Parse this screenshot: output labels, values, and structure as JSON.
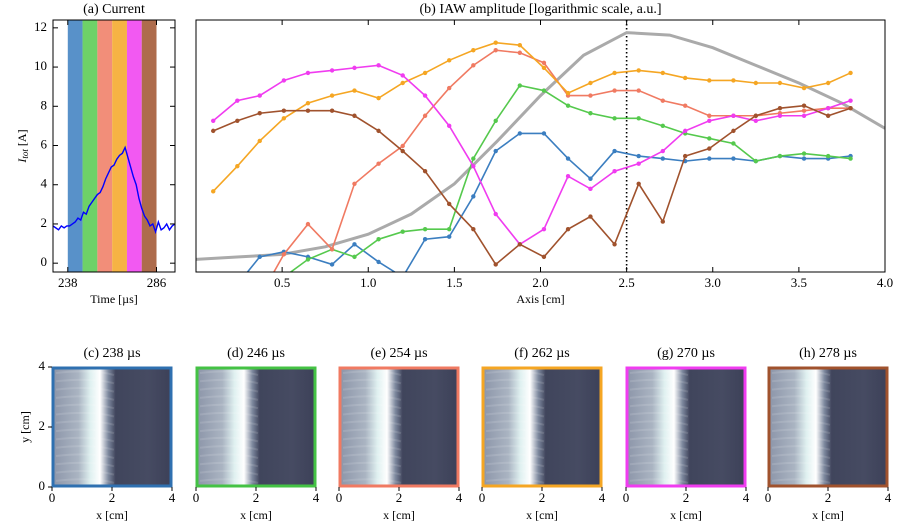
{
  "chart_data": [
    {
      "type": "line",
      "title": "(a) Current",
      "xlabel": "Time [µs]",
      "ylabel": {
        "symbol": "I",
        "subscript": "tot",
        "unit": "[A]"
      },
      "xlim": [
        230,
        296
      ],
      "xticks": [
        238,
        286
      ],
      "ylim": [
        -0.45,
        12.4
      ],
      "yticks": [
        0,
        2,
        4,
        6,
        8,
        10,
        12
      ],
      "bands": [
        {
          "start": 238,
          "end": 246,
          "color": "#3b7ec0"
        },
        {
          "start": 246,
          "end": 254,
          "color": "#55c94d"
        },
        {
          "start": 254,
          "end": 262,
          "color": "#f07a62"
        },
        {
          "start": 262,
          "end": 270,
          "color": "#f5a623"
        },
        {
          "start": 270,
          "end": 278,
          "color": "#f03cf0"
        },
        {
          "start": 278,
          "end": 286,
          "color": "#a0522d"
        }
      ],
      "series": [
        {
          "color": "#0000ff",
          "markers": false,
          "x": [
            230,
            231.5,
            233,
            234.5,
            236,
            237.5,
            239,
            240.5,
            242,
            243.5,
            245,
            246.5,
            248,
            249.5,
            251,
            252.5,
            254,
            255.5,
            257,
            258.5,
            260,
            261.5,
            263,
            264.5,
            266,
            267.5,
            269,
            270.5,
            272,
            273.5,
            275,
            276.5,
            278,
            279.5,
            281,
            282.5,
            284,
            285.5,
            287,
            288.5,
            290,
            291.5,
            293,
            294.5,
            296
          ],
          "values": [
            1.9,
            1.8,
            1.7,
            1.9,
            1.8,
            1.9,
            1.9,
            2.0,
            2.1,
            2.3,
            2.2,
            2.6,
            2.5,
            2.9,
            3.1,
            3.3,
            3.5,
            3.6,
            3.9,
            4.3,
            4.6,
            4.9,
            5.0,
            5.3,
            5.5,
            5.6,
            5.9,
            5.4,
            4.9,
            4.4,
            4.0,
            3.3,
            2.8,
            2.4,
            2.2,
            1.9,
            2.0,
            1.6,
            2.1,
            1.7,
            1.8,
            2.0,
            1.7,
            1.9,
            2.0
          ]
        }
      ]
    },
    {
      "type": "line",
      "title": "(b) IAW amplitude [logarithmic scale, a.u.]",
      "xlabel": "Axis [cm]",
      "xlim": [
        0,
        4
      ],
      "xticks": [
        0.5,
        {
          "value": 1,
          "label": "1.0"
        },
        1.5,
        {
          "value": 2,
          "label": "2.0"
        },
        2.5,
        {
          "value": 3,
          "label": "3.0"
        },
        3.5,
        {
          "value": 4,
          "label": "4.0"
        }
      ],
      "ylim": [
        0,
        100
      ],
      "vline": 2.5,
      "series": [
        {
          "color": "#aaaaaa",
          "markers": false,
          "x": [
            0,
            0.25,
            0.5,
            0.75,
            1.0,
            1.25,
            1.5,
            1.75,
            2.0,
            2.25,
            2.5,
            2.75,
            3.0,
            3.25,
            3.5,
            3.75,
            4.0
          ],
          "values": [
            5,
            6,
            7,
            10,
            15,
            23,
            35,
            52,
            70,
            86,
            95,
            94,
            89,
            82,
            75,
            67,
            57
          ]
        },
        {
          "color": "#3b7ec0",
          "markers": true,
          "x": [
            0.1,
            0.24,
            0.37,
            0.51,
            0.65,
            0.79,
            0.92,
            1.06,
            1.2,
            1.33,
            1.47,
            1.61,
            1.74,
            1.88,
            2.02,
            2.16,
            2.29,
            2.43,
            2.57,
            2.71,
            2.84,
            2.98,
            3.12,
            3.25,
            3.39,
            3.53,
            3.67,
            3.8
          ],
          "values": [
            null,
            -5,
            6,
            8,
            6,
            3,
            11,
            4,
            -2,
            13,
            14,
            30,
            48,
            55,
            55,
            45,
            37,
            48,
            46,
            45,
            44,
            45,
            45,
            44,
            46,
            45,
            45,
            46
          ]
        },
        {
          "color": "#55c94d",
          "markers": true,
          "x": [
            0.1,
            0.24,
            0.37,
            0.51,
            0.65,
            0.79,
            0.92,
            1.06,
            1.2,
            1.33,
            1.47,
            1.61,
            1.74,
            1.88,
            2.02,
            2.16,
            2.29,
            2.43,
            2.57,
            2.71,
            2.84,
            2.98,
            3.12,
            3.25,
            3.39,
            3.53,
            3.67,
            3.8
          ],
          "values": [
            null,
            null,
            -8,
            -2,
            5,
            9,
            6,
            13,
            16,
            17,
            17,
            45,
            60,
            74,
            72,
            66,
            63,
            61,
            61,
            58,
            55,
            53,
            51,
            44,
            46,
            47,
            46,
            45
          ]
        },
        {
          "color": "#f07a62",
          "markers": true,
          "x": [
            0.1,
            0.24,
            0.37,
            0.51,
            0.65,
            0.79,
            0.92,
            1.06,
            1.2,
            1.33,
            1.47,
            1.61,
            1.74,
            1.88,
            2.02,
            2.16,
            2.29,
            2.43,
            2.57,
            2.71,
            2.84,
            2.98,
            3.12,
            3.25,
            3.39,
            3.53,
            3.67,
            3.8
          ],
          "values": [
            null,
            null,
            -10,
            7,
            19,
            9,
            35,
            43,
            50,
            62,
            73,
            82,
            88,
            87,
            83,
            70,
            70,
            72,
            72,
            68,
            66,
            62,
            62,
            62,
            63,
            64,
            65,
            65
          ]
        },
        {
          "color": "#f5a623",
          "markers": true,
          "x": [
            0.1,
            0.24,
            0.37,
            0.51,
            0.65,
            0.79,
            0.92,
            1.06,
            1.2,
            1.33,
            1.47,
            1.61,
            1.74,
            1.88,
            2.02,
            2.16,
            2.29,
            2.43,
            2.57,
            2.71,
            2.84,
            2.98,
            3.12,
            3.25,
            3.39,
            3.53,
            3.67,
            3.8
          ],
          "values": [
            32,
            42,
            52,
            61,
            67,
            70,
            72,
            69,
            75,
            79,
            84,
            88,
            91,
            90,
            81,
            71,
            75,
            79,
            80,
            79,
            77,
            76,
            76,
            75,
            75,
            73,
            75,
            79
          ]
        },
        {
          "color": "#f03cf0",
          "markers": true,
          "x": [
            0.1,
            0.24,
            0.37,
            0.51,
            0.65,
            0.79,
            0.92,
            1.06,
            1.2,
            1.33,
            1.47,
            1.61,
            1.74,
            1.88,
            2.02,
            2.16,
            2.29,
            2.43,
            2.57,
            2.71,
            2.84,
            2.98,
            3.12,
            3.25,
            3.39,
            3.53,
            3.67,
            3.8
          ],
          "values": [
            60,
            68,
            70,
            76,
            79,
            80,
            81,
            82,
            78,
            70,
            58,
            42,
            23,
            11,
            17,
            38,
            33,
            40,
            43,
            48,
            56,
            60,
            62,
            60,
            62,
            62,
            65,
            68
          ]
        },
        {
          "color": "#a0522d",
          "markers": true,
          "x": [
            0.1,
            0.24,
            0.37,
            0.51,
            0.65,
            0.79,
            0.92,
            1.06,
            1.2,
            1.33,
            1.47,
            1.61,
            1.74,
            1.88,
            2.02,
            2.16,
            2.29,
            2.43,
            2.57,
            2.71,
            2.84,
            2.98,
            3.12,
            3.25,
            3.39,
            3.53,
            3.67,
            3.8
          ],
          "values": [
            56,
            60,
            63,
            64,
            64,
            64,
            62,
            56,
            48,
            40,
            27,
            17,
            3,
            11,
            6,
            17,
            22,
            11,
            35,
            20,
            46,
            49,
            56,
            62,
            65,
            66,
            62,
            65
          ]
        }
      ]
    },
    {
      "type": "image",
      "title": "(c) 238 µs",
      "color": "#2f70b0",
      "xlim": [
        0,
        4
      ],
      "xticks": [
        0,
        2,
        4
      ],
      "xlabel": "x [cm]",
      "ylim": [
        0,
        4
      ],
      "yticks": [
        0,
        2,
        4
      ],
      "ylabel": "y [cm]"
    },
    {
      "type": "image",
      "title": "(d) 246 µs",
      "color": "#44c244",
      "xlim": [
        0,
        4
      ],
      "xticks": [
        0,
        2,
        4
      ],
      "xlabel": "x [cm]"
    },
    {
      "type": "image",
      "title": "(e) 254 µs",
      "color": "#f07a62",
      "xlim": [
        0,
        4
      ],
      "xticks": [
        0,
        2,
        4
      ],
      "xlabel": "x [cm]"
    },
    {
      "type": "image",
      "title": "(f) 262 µs",
      "color": "#f5a623",
      "xlim": [
        0,
        4
      ],
      "xticks": [
        0,
        2,
        4
      ],
      "xlabel": "x [cm]"
    },
    {
      "type": "image",
      "title": "(g) 270 µs",
      "color": "#f03cf0",
      "xlim": [
        0,
        4
      ],
      "xticks": [
        0,
        2,
        4
      ],
      "xlabel": "x [cm]"
    },
    {
      "type": "image",
      "title": "(h) 278 µs",
      "color": "#a0522d",
      "xlim": [
        0,
        4
      ],
      "xticks": [
        0,
        2,
        4
      ],
      "xlabel": "x [cm]"
    }
  ]
}
